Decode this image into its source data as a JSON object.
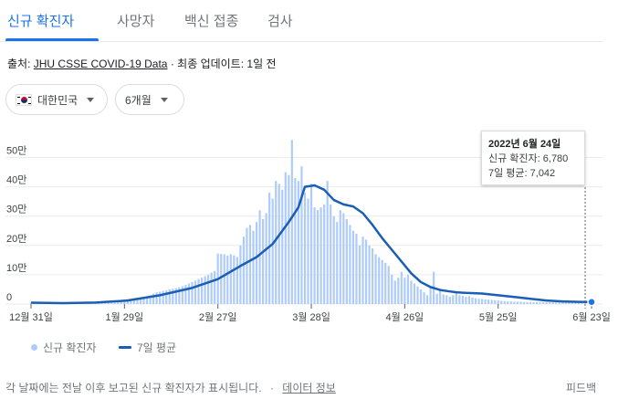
{
  "tabs": [
    {
      "label": "신규 확진자",
      "active": true
    },
    {
      "label": "사망자",
      "active": false
    },
    {
      "label": "백신 접종",
      "active": false
    },
    {
      "label": "검사",
      "active": false
    }
  ],
  "source": {
    "prefix": "출처:",
    "link": "JHU CSSE COVID-19 Data",
    "suffix": " · 최종 업데이트: 1일 전"
  },
  "filters": {
    "country": "대한민국",
    "period": "6개월"
  },
  "colors": {
    "accent": "#1a73e8",
    "bar": "#aecbfa",
    "line": "#1a5fb4"
  },
  "chart_data": {
    "type": "bar",
    "ylim": [
      0,
      620000
    ],
    "y_ticks": [
      {
        "value": 0,
        "label": "0"
      },
      {
        "value": 100000,
        "label": "10만"
      },
      {
        "value": 200000,
        "label": "20만"
      },
      {
        "value": 300000,
        "label": "30만"
      },
      {
        "value": 400000,
        "label": "40만"
      },
      {
        "value": 500000,
        "label": "50만"
      }
    ],
    "x_ticks": [
      {
        "day": 0,
        "label": "12월 31일"
      },
      {
        "day": 29,
        "label": "1월 29일"
      },
      {
        "day": 58,
        "label": "2월 27일"
      },
      {
        "day": 87,
        "label": "3월 28일"
      },
      {
        "day": 116,
        "label": "4월 26일"
      },
      {
        "day": 145,
        "label": "5월 25일"
      },
      {
        "day": 174,
        "label": "6월 23일"
      }
    ],
    "series": [
      {
        "name": "신규 확진자",
        "kind": "bar"
      },
      {
        "name": "7일 평균",
        "kind": "line"
      }
    ],
    "bar_values": [
      4400,
      4200,
      4000,
      3800,
      3700,
      3600,
      3400,
      3300,
      3200,
      3000,
      3000,
      3100,
      3300,
      3500,
      3800,
      4100,
      4400,
      4700,
      5000,
      5300,
      5600,
      6000,
      6500,
      7000,
      8000,
      9000,
      10000,
      12000,
      13000,
      14500,
      17000,
      18000,
      19000,
      20000,
      22000,
      24000,
      27000,
      30000,
      35000,
      40000,
      42000,
      45000,
      47000,
      50000,
      52000,
      54000,
      57000,
      60000,
      65000,
      70000,
      75000,
      80000,
      85000,
      90000,
      95000,
      100000,
      107000,
      113000,
      172000,
      171000,
      170000,
      165000,
      170000,
      166000,
      160000,
      200000,
      230000,
      260000,
      270000,
      250000,
      280000,
      320000,
      290000,
      310000,
      380000,
      360000,
      420000,
      410000,
      390000,
      450000,
      440000,
      560000,
      430000,
      420000,
      470000,
      380000,
      360000,
      410000,
      330000,
      320000,
      330000,
      340000,
      420000,
      340000,
      300000,
      280000,
      320000,
      310000,
      290000,
      270000,
      250000,
      240000,
      200000,
      230000,
      220000,
      200000,
      190000,
      170000,
      160000,
      150000,
      140000,
      130000,
      100000,
      80000,
      90000,
      110000,
      90000,
      100000,
      80000,
      70000,
      60000,
      50000,
      40000,
      30000,
      60000,
      110000,
      35000,
      50000,
      33000,
      30000,
      25000,
      30000,
      38000,
      30000,
      28000,
      25000,
      27000,
      22000,
      20000,
      18000,
      17000,
      16000,
      15000,
      14000,
      13000,
      12000,
      11000,
      10000,
      9000,
      9000,
      8000,
      8000,
      8000,
      7000,
      7000,
      7000,
      6000,
      6000,
      6000,
      6000,
      6000,
      6000,
      6000,
      6000,
      6000,
      7000,
      7000,
      7000,
      7000,
      7000,
      7000,
      7000,
      6780
    ],
    "avg_points": [
      [
        0,
        4500
      ],
      [
        10,
        3100
      ],
      [
        20,
        5000
      ],
      [
        30,
        12000
      ],
      [
        40,
        30000
      ],
      [
        50,
        55000
      ],
      [
        58,
        85000
      ],
      [
        65,
        130000
      ],
      [
        70,
        160000
      ],
      [
        75,
        205000
      ],
      [
        80,
        280000
      ],
      [
        83,
        330000
      ],
      [
        85,
        400000
      ],
      [
        88,
        405000
      ],
      [
        91,
        390000
      ],
      [
        94,
        355000
      ],
      [
        97,
        340000
      ],
      [
        100,
        333000
      ],
      [
        103,
        310000
      ],
      [
        106,
        270000
      ],
      [
        109,
        225000
      ],
      [
        112,
        185000
      ],
      [
        115,
        145000
      ],
      [
        118,
        105000
      ],
      [
        121,
        75000
      ],
      [
        124,
        58000
      ],
      [
        127,
        48000
      ],
      [
        130,
        43000
      ],
      [
        132,
        40000
      ],
      [
        135,
        38000
      ],
      [
        140,
        36000
      ],
      [
        145,
        30000
      ],
      [
        150,
        24000
      ],
      [
        155,
        18000
      ],
      [
        160,
        12000
      ],
      [
        165,
        9000
      ],
      [
        170,
        7500
      ],
      [
        174,
        7042
      ]
    ],
    "tooltip": {
      "date": "2022년 6월 24일",
      "cases_label": "신규 확진자: 6,780",
      "avg_label": "7일 평균: 7,042"
    }
  },
  "legend": {
    "bars": "신규 확진자",
    "line": "7일 평균"
  },
  "footer": {
    "note": "각 날짜에는 전날 이후 보고된 신규 확진자가 표시됩니다.",
    "separator": "·",
    "link": "데이터 정보",
    "feedback": "피드백"
  }
}
